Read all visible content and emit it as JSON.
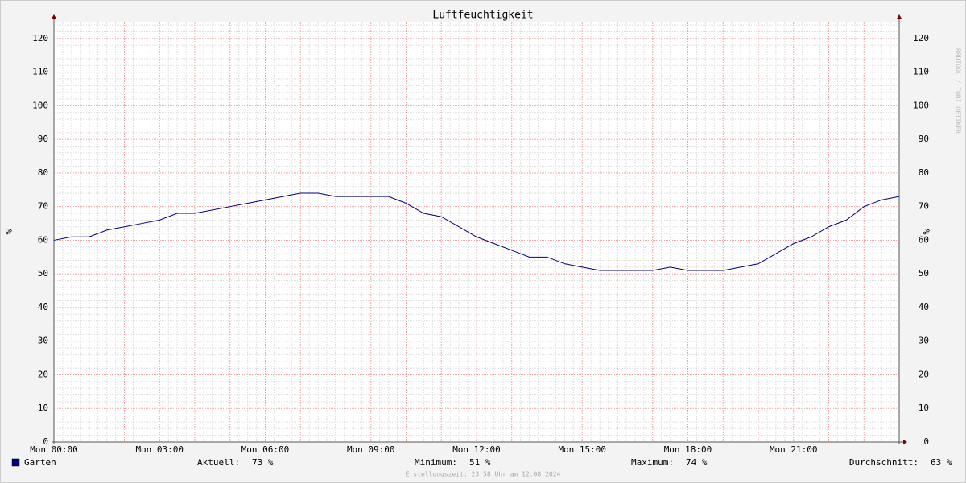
{
  "chart_data": {
    "type": "line",
    "title": "Luftfeuchtigkeit",
    "y_label": "%",
    "watermark": "RRDTOOL / TOBI OETIKER",
    "x": [
      0,
      0.5,
      1,
      1.5,
      2,
      2.5,
      3,
      3.5,
      4,
      4.5,
      5,
      5.5,
      6,
      6.5,
      7,
      7.5,
      8,
      8.5,
      9,
      9.5,
      10,
      10.5,
      11,
      11.5,
      12,
      12.5,
      13,
      13.5,
      14,
      14.5,
      15,
      15.5,
      16,
      16.5,
      17,
      17.5,
      18,
      18.5,
      19,
      19.5,
      20,
      20.5,
      21,
      21.5,
      22,
      22.5,
      23,
      23.5,
      24
    ],
    "series": [
      {
        "name": "Garten",
        "color": "#00007f",
        "values": [
          60,
          61,
          61,
          63,
          64,
          65,
          66,
          68,
          68,
          69,
          70,
          71,
          72,
          73,
          74,
          74,
          73,
          73,
          73,
          73,
          71,
          68,
          67,
          64,
          61,
          59,
          57,
          55,
          55,
          53,
          52,
          51,
          51,
          51,
          51,
          52,
          51,
          51,
          51,
          52,
          53,
          56,
          59,
          61,
          64,
          66,
          70,
          72,
          73
        ]
      }
    ],
    "xlim": [
      0,
      24
    ],
    "xticks": [
      {
        "value": 0,
        "label": "Mon 00:00"
      },
      {
        "value": 3,
        "label": "Mon 03:00"
      },
      {
        "value": 6,
        "label": "Mon 06:00"
      },
      {
        "value": 9,
        "label": "Mon 09:00"
      },
      {
        "value": 12,
        "label": "Mon 12:00"
      },
      {
        "value": 15,
        "label": "Mon 15:00"
      },
      {
        "value": 18,
        "label": "Mon 18:00"
      },
      {
        "value": 21,
        "label": "Mon 21:00"
      }
    ],
    "ylim": [
      0,
      125
    ],
    "yticks": [
      0,
      10,
      20,
      30,
      40,
      50,
      60,
      70,
      80,
      90,
      100,
      110,
      120
    ],
    "grid": true,
    "stats": [
      {
        "label": "Aktuell:",
        "text": "73 %"
      },
      {
        "label": "Minimum:",
        "text": "51 %"
      },
      {
        "label": "Maximum:",
        "text": "74 %"
      },
      {
        "label": "Durchschnitt:",
        "text": "63 %"
      }
    ],
    "footer": "Erstellungszeit: 23:58 Uhr am 12.08.2024"
  }
}
